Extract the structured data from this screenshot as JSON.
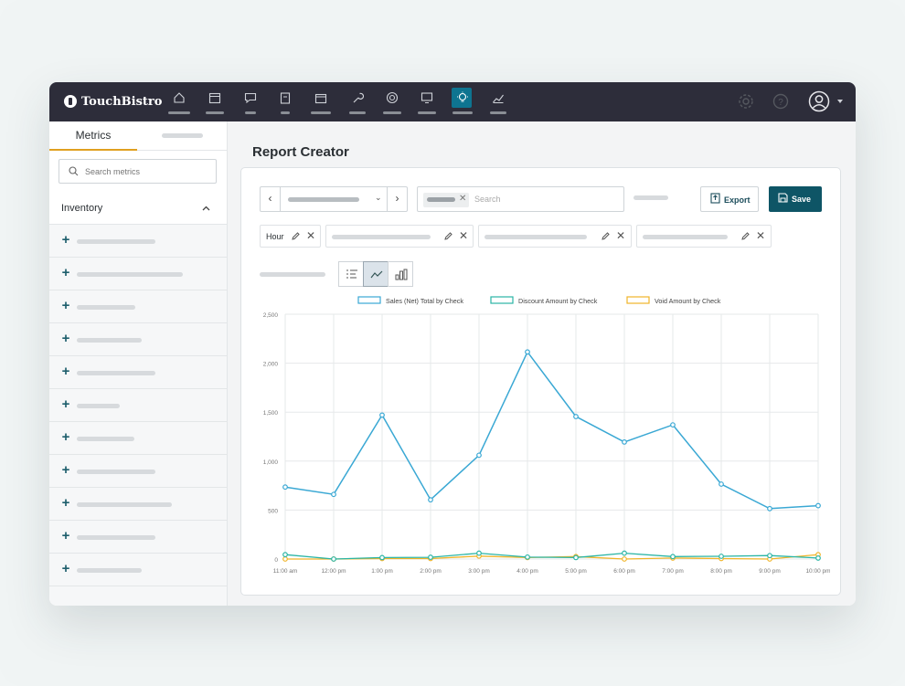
{
  "app": {
    "brand": "TouchBistro"
  },
  "nav": [
    {
      "icon": "home-icon",
      "bar": 24
    },
    {
      "icon": "calendar-icon",
      "bar": 20
    },
    {
      "icon": "chat-icon",
      "bar": 12
    },
    {
      "icon": "clipboard-icon",
      "bar": 10
    },
    {
      "icon": "box-icon",
      "bar": 22
    },
    {
      "icon": "wrench-icon",
      "bar": 18
    },
    {
      "icon": "target-icon",
      "bar": 20
    },
    {
      "icon": "monitor-icon",
      "bar": 20
    },
    {
      "icon": "lightbulb-icon",
      "bar": 22,
      "active": true
    },
    {
      "icon": "trend-chart-icon",
      "bar": 18
    }
  ],
  "sidebar": {
    "tab_metrics": "Metrics",
    "search_placeholder": "Search metrics",
    "category": "Inventory",
    "item_count": 11
  },
  "main": {
    "title": "Report Creator",
    "search_placeholder": "Search",
    "export_label": "Export",
    "save_label": "Save",
    "dimension_label": "Hour"
  },
  "colors": {
    "sales": "#3aa8d4",
    "discount": "#2ab5a5",
    "void": "#f0b429",
    "accent": "#0e5566"
  },
  "chart_data": {
    "type": "line",
    "categories": [
      "11:00 am",
      "12:00 pm",
      "1:00 pm",
      "2:00 pm",
      "3:00 pm",
      "4:00 pm",
      "5:00 pm",
      "6:00 pm",
      "7:00 pm",
      "8:00 pm",
      "9:00 pm",
      "10:00 pm"
    ],
    "ylim": [
      0,
      2500
    ],
    "yticks": [
      "0",
      "500",
      "1,000",
      "1,500",
      "2,000",
      "2,500"
    ],
    "grid": true,
    "legend_position": "top",
    "series": [
      {
        "name": "Sales (Net) Total by Check",
        "color": "#3aa8d4",
        "values": [
          735,
          660,
          1470,
          605,
          1060,
          2115,
          1455,
          1195,
          1370,
          765,
          515,
          545
        ]
      },
      {
        "name": "Discount Amount by Check",
        "color": "#2ab5a5",
        "values": [
          45,
          0,
          15,
          18,
          60,
          20,
          15,
          60,
          25,
          28,
          35,
          10
        ]
      },
      {
        "name": "Void Amount by Check",
        "color": "#f0b429",
        "values": [
          0,
          0,
          5,
          5,
          30,
          15,
          25,
          0,
          10,
          5,
          0,
          45
        ]
      }
    ]
  }
}
